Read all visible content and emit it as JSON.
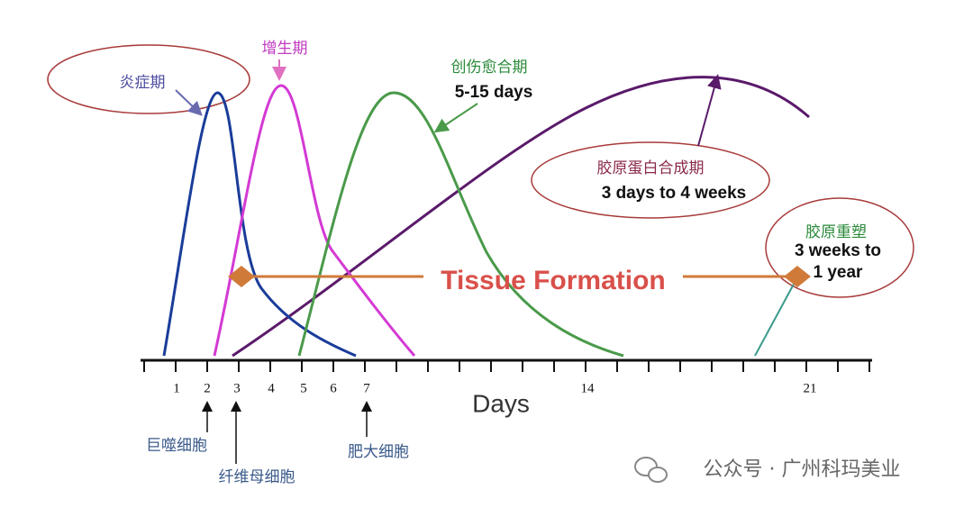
{
  "phases": [
    {
      "label": "炎症期"
    },
    {
      "label": "增生期"
    },
    {
      "label": "创伤愈合期",
      "duration": "5-15 days"
    },
    {
      "label": "胶原蛋白合成期",
      "duration": "3 days to 4 weeks"
    },
    {
      "label": "胶原重塑",
      "duration_lines": [
        "3 weeks to",
        "1 year"
      ]
    }
  ],
  "band_label": "Tissue Formation",
  "axis": {
    "title": "Days",
    "ticks": [
      "1",
      "2",
      "3",
      "4",
      "5",
      "6",
      "7",
      "14",
      "21"
    ]
  },
  "cells": [
    "巨噬细胞",
    "纤维母细胞",
    "肥大细胞"
  ],
  "watermark": "公众号 · 广州科玛美业"
}
